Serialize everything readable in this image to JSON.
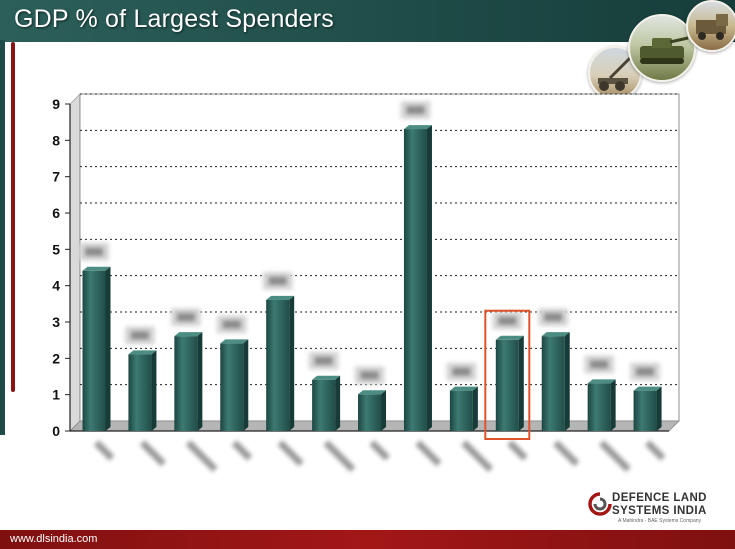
{
  "header": {
    "title": "GDP % of Largest Spenders"
  },
  "footer": {
    "url": "www.dlsindia.com"
  },
  "logo": {
    "line1": "DEFENCE LAND",
    "line2": "SYSTEMS INDIA",
    "tagline": "A Mahindra - BAE Systems Company"
  },
  "photos": [
    {
      "icon": "artillery-photo-icon"
    },
    {
      "icon": "armored-vehicle-photo-icon"
    },
    {
      "icon": "military-truck-photo-icon"
    }
  ],
  "colors": {
    "bar": "#2e625c",
    "bar_dark": "#173b37",
    "highlight": "#e0522c",
    "header": "#1f4c48",
    "footer": "#a31717"
  },
  "chart_data": {
    "type": "bar",
    "categories": [
      "",
      "",
      "",
      "",
      "",
      "",
      "",
      "",
      "",
      "",
      "",
      "",
      ""
    ],
    "values": [
      4.3,
      2.0,
      2.5,
      2.3,
      3.5,
      1.3,
      0.9,
      8.2,
      1.0,
      2.4,
      2.5,
      1.2,
      1.0
    ],
    "data_labels_legible": false,
    "highlighted_index": 9,
    "ylim": [
      0,
      9
    ],
    "yticks": [
      0,
      1,
      2,
      3,
      4,
      5,
      6,
      7,
      8,
      9
    ],
    "grid": true,
    "gridline_style": "dotted",
    "xlabel": "",
    "ylabel": ""
  }
}
